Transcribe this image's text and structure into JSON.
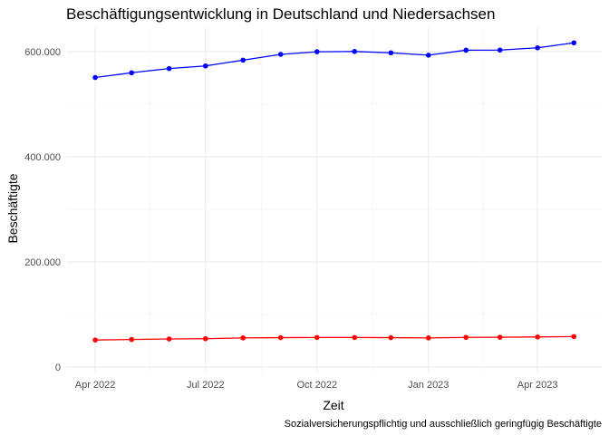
{
  "chart_data": {
    "type": "line",
    "title": "Beschäftigungsentwicklung in Deutschland und Niedersachsen",
    "xlabel": "Zeit",
    "ylabel": "Beschäftigte",
    "caption": "Sozialversicherungspflichtig und ausschließlich geringfügig Beschäftigte",
    "x": [
      "2022-04",
      "2022-05",
      "2022-06",
      "2022-07",
      "2022-08",
      "2022-09",
      "2022-10",
      "2022-11",
      "2022-12",
      "2023-01",
      "2023-02",
      "2023-03",
      "2023-04",
      "2023-05"
    ],
    "x_ticks": [
      {
        "x": "2022-04",
        "label": "Apr 2022"
      },
      {
        "x": "2022-07",
        "label": "Jul 2022"
      },
      {
        "x": "2022-10",
        "label": "Oct 2022"
      },
      {
        "x": "2023-01",
        "label": "Jan 2023"
      },
      {
        "x": "2023-04",
        "label": "Apr 2023"
      }
    ],
    "y_ticks": [
      {
        "value": 0,
        "label": "0"
      },
      {
        "value": 200000,
        "label": "200.000"
      },
      {
        "value": 400000,
        "label": "400.000"
      },
      {
        "value": 600000,
        "label": "600.000"
      }
    ],
    "ylim": [
      -12000,
      645000
    ],
    "xlim": [
      "2022-03-08",
      "2023-05-24"
    ],
    "grid": true,
    "legend": "none",
    "series": [
      {
        "color": "#0000ff",
        "values": [
          551000,
          560000,
          568000,
          573000,
          584000,
          595000,
          600000,
          600500,
          598000,
          593500,
          603000,
          603200,
          607500,
          617000
        ]
      },
      {
        "color": "#ff0000",
        "values": [
          51500,
          52500,
          53500,
          54000,
          55500,
          56000,
          56300,
          56300,
          56000,
          55500,
          56500,
          56700,
          57300,
          58000
        ]
      }
    ]
  }
}
